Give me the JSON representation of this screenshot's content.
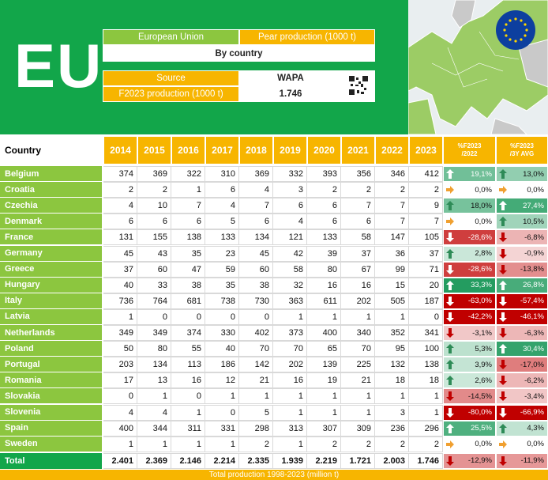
{
  "header": {
    "logo": "EU",
    "region": "European Union",
    "product": "Pear production (1000 t)",
    "breakdown": "By country",
    "source_label": "Source",
    "source": "WAPA",
    "forecast_label": "F2023 production (1000 t)",
    "forecast": "1.746"
  },
  "table": {
    "columns": [
      "Country",
      "2014",
      "2015",
      "2016",
      "2017",
      "2018",
      "2019",
      "2020",
      "2021",
      "2022",
      "2023",
      [
        "%F2023",
        "/2022"
      ],
      [
        "%F2023",
        "/3Y AVG"
      ]
    ],
    "rows": [
      [
        "Belgium",
        "374",
        "369",
        "322",
        "310",
        "369",
        "332",
        "393",
        "356",
        "346",
        "412",
        "19,1%",
        "13,0%"
      ],
      [
        "Croatia",
        "2",
        "2",
        "1",
        "6",
        "4",
        "3",
        "2",
        "2",
        "2",
        "2",
        "0,0%",
        "0,0%"
      ],
      [
        "Czechia",
        "4",
        "10",
        "7",
        "4",
        "7",
        "6",
        "6",
        "7",
        "7",
        "9",
        "18,0%",
        "27,4%"
      ],
      [
        "Denmark",
        "6",
        "6",
        "6",
        "5",
        "6",
        "4",
        "6",
        "6",
        "7",
        "7",
        "0,0%",
        "10,5%"
      ],
      [
        "France",
        "131",
        "155",
        "138",
        "133",
        "134",
        "121",
        "133",
        "58",
        "147",
        "105",
        "-28,6%",
        "-6,8%"
      ],
      [
        "Germany",
        "45",
        "43",
        "35",
        "23",
        "45",
        "42",
        "39",
        "37",
        "36",
        "37",
        "2,8%",
        "-0,9%"
      ],
      [
        "Greece",
        "37",
        "60",
        "47",
        "59",
        "60",
        "58",
        "80",
        "67",
        "99",
        "71",
        "-28,6%",
        "-13,8%"
      ],
      [
        "Hungary",
        "40",
        "33",
        "38",
        "35",
        "38",
        "32",
        "16",
        "16",
        "15",
        "20",
        "33,3%",
        "26,8%"
      ],
      [
        "Italy",
        "736",
        "764",
        "681",
        "738",
        "730",
        "363",
        "611",
        "202",
        "505",
        "187",
        "-63,0%",
        "-57,4%"
      ],
      [
        "Latvia",
        "1",
        "0",
        "0",
        "0",
        "0",
        "1",
        "1",
        "1",
        "1",
        "0",
        "-42,2%",
        "-46,1%"
      ],
      [
        "Netherlands",
        "349",
        "349",
        "374",
        "330",
        "402",
        "373",
        "400",
        "340",
        "352",
        "341",
        "-3,1%",
        "-6,3%"
      ],
      [
        "Poland",
        "50",
        "80",
        "55",
        "40",
        "70",
        "70",
        "65",
        "70",
        "95",
        "100",
        "5,3%",
        "30,4%"
      ],
      [
        "Portugal",
        "203",
        "134",
        "113",
        "186",
        "142",
        "202",
        "139",
        "225",
        "132",
        "138",
        "3,9%",
        "-17,0%"
      ],
      [
        "Romania",
        "17",
        "13",
        "16",
        "12",
        "21",
        "16",
        "19",
        "21",
        "18",
        "18",
        "2,6%",
        "-6,2%"
      ],
      [
        "Slovakia",
        "0",
        "1",
        "0",
        "1",
        "1",
        "1",
        "1",
        "1",
        "1",
        "1",
        "-14,5%",
        "-3,4%"
      ],
      [
        "Slovenia",
        "4",
        "4",
        "1",
        "0",
        "5",
        "1",
        "1",
        "1",
        "3",
        "1",
        "-80,0%",
        "-66,9%"
      ],
      [
        "Spain",
        "400",
        "344",
        "311",
        "331",
        "298",
        "313",
        "307",
        "309",
        "236",
        "296",
        "25,5%",
        "4,3%"
      ],
      [
        "Sweden",
        "1",
        "1",
        "1",
        "1",
        "2",
        "1",
        "2",
        "2",
        "2",
        "2",
        "0,0%",
        "0,0%"
      ]
    ],
    "total": [
      "Total",
      "2.401",
      "2.369",
      "2.146",
      "2.214",
      "2.335",
      "1.939",
      "2.219",
      "1.721",
      "2.003",
      "1.746",
      "-12,9%",
      "-11,9%"
    ]
  },
  "footer": "Total production 1998-2023 (million t)"
}
